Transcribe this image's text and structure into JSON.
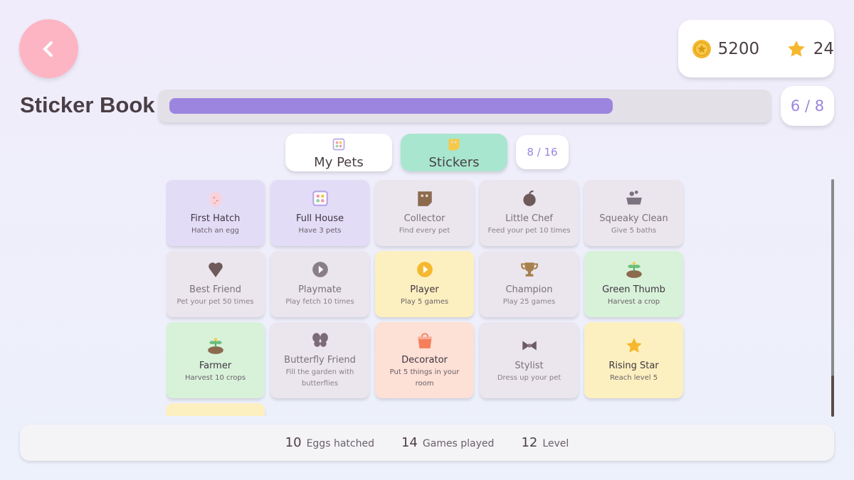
{
  "header": {
    "title": "Sticker Book",
    "coins": 5200,
    "stars": 24,
    "progress": {
      "label": "6 / 8",
      "value": 6,
      "max": 8
    }
  },
  "tabs": [
    {
      "label": "My Pets",
      "active": false
    },
    {
      "label": "Stickers",
      "active": true
    }
  ],
  "sticker_count": "8 / 16",
  "stickers": [
    {
      "title": "First Hatch",
      "subtitle": "Hatch an egg",
      "color": "purple",
      "icon": "egg"
    },
    {
      "title": "Full House",
      "subtitle": "Have 3 pets",
      "color": "purple",
      "icon": "grid"
    },
    {
      "title": "Collector",
      "subtitle": "Find every pet",
      "color": "grey",
      "icon": "book"
    },
    {
      "title": "Little Chef",
      "subtitle": "Feed your pet 10 times",
      "color": "grey",
      "icon": "food"
    },
    {
      "title": "Squeaky Clean",
      "subtitle": "Give 5 baths",
      "color": "grey",
      "icon": "bath"
    },
    {
      "title": "Best Friend",
      "subtitle": "Pet your pet 50 times",
      "color": "grey",
      "icon": "heart"
    },
    {
      "title": "Playmate",
      "subtitle": "Play fetch 10 times",
      "color": "grey",
      "icon": "play"
    },
    {
      "title": "Player",
      "subtitle": "Play 5 games",
      "color": "yellow",
      "icon": "play"
    },
    {
      "title": "Champion",
      "subtitle": "Play 25 games",
      "color": "grey",
      "icon": "trophy"
    },
    {
      "title": "Green Thumb",
      "subtitle": "Harvest a crop",
      "color": "green",
      "icon": "sprout"
    },
    {
      "title": "Farmer",
      "subtitle": "Harvest 10 crops",
      "color": "green",
      "icon": "sprout"
    },
    {
      "title": "Butterfly Friend",
      "subtitle": "Fill the garden with butterflies",
      "color": "grey",
      "icon": "butterfly"
    },
    {
      "title": "Decorator",
      "subtitle": "Put 5 things in your room",
      "color": "peach",
      "icon": "bucket"
    },
    {
      "title": "Stylist",
      "subtitle": "Dress up your pet",
      "color": "grey",
      "icon": "bow"
    },
    {
      "title": "Rising Star",
      "subtitle": "Reach level 5",
      "color": "yellow",
      "icon": "star"
    },
    {
      "color": "yellow",
      "icon": "star"
    }
  ],
  "stats": [
    {
      "value": 10,
      "label": "Eggs hatched"
    },
    {
      "value": 14,
      "label": "Games played"
    },
    {
      "value": 12,
      "label": "Level"
    }
  ]
}
